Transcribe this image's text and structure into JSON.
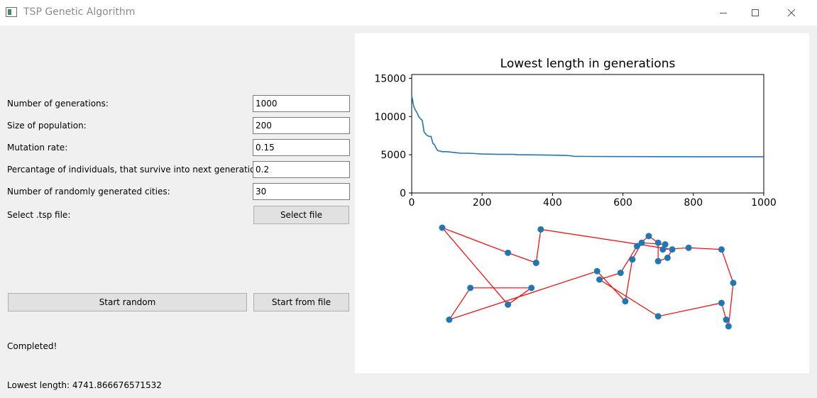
{
  "window": {
    "title": "TSP Genetic Algorithm",
    "minimize_icon": "minimize-icon",
    "maximize_icon": "maximize-icon",
    "close_icon": "close-icon"
  },
  "form": {
    "generations_label": "Number of generations:",
    "generations_value": "1000",
    "population_label": "Size of population:",
    "population_value": "200",
    "mutation_label": "Mutation rate:",
    "mutation_value": "0.15",
    "survive_label": "Percantage of individuals, that survive into next generation:",
    "survive_value": "0.2",
    "cities_label": "Number of randomly generated cities:",
    "cities_value": "30",
    "file_label": "Select .tsp file:",
    "select_file_button": "Select file"
  },
  "actions": {
    "start_random": "Start random",
    "start_from_file": "Start from file"
  },
  "status": {
    "message": "Completed!",
    "lowest_length": "Lowest length: 4741.866676571532"
  },
  "chart_data": [
    {
      "type": "line",
      "title": "Lowest length in generations",
      "xlabel": "",
      "ylabel": "",
      "xlim": [
        0,
        1000
      ],
      "ylim": [
        0,
        15500
      ],
      "x_ticks": [
        "0",
        "200",
        "400",
        "600",
        "800",
        "1000"
      ],
      "y_ticks": [
        "0",
        "5000",
        "10000",
        "15000"
      ],
      "color": "#1f77b4",
      "x": [
        0,
        3,
        6,
        10,
        15,
        20,
        25,
        30,
        35,
        40,
        45,
        50,
        55,
        60,
        65,
        70,
        75,
        80,
        85,
        100,
        120,
        140,
        160,
        180,
        200,
        250,
        290,
        300,
        350,
        400,
        440,
        450,
        460,
        500,
        600,
        700,
        800,
        900,
        1000
      ],
      "y": [
        12800,
        12000,
        11300,
        10900,
        10500,
        10000,
        9700,
        9500,
        8000,
        7700,
        7500,
        7400,
        7400,
        6500,
        6300,
        5800,
        5500,
        5500,
        5400,
        5400,
        5300,
        5200,
        5200,
        5150,
        5100,
        5050,
        5050,
        5000,
        4980,
        4950,
        4900,
        4870,
        4800,
        4780,
        4760,
        4750,
        4745,
        4742,
        4742
      ]
    },
    {
      "type": "scatter",
      "title": "",
      "point_color": "#1f77b4",
      "path_color": "#ff0000",
      "x": [
        46.5,
        47.5,
        75.5,
        74.5,
        72.5,
        72.5,
        70.5,
        68.0,
        64.5,
        60.0,
        72.5,
        86.0,
        87.0,
        87.5,
        88.5,
        86.0,
        79.0,
        73.5,
        74.0,
        69.0,
        67.0,
        65.5,
        59.5,
        28.0,
        32.5,
        45.5,
        40.5,
        26.5,
        40.5,
        46.5
      ],
      "y": [
        58.0,
        68.0,
        62.0,
        59.5,
        58.5,
        64.0,
        66.0,
        63.0,
        55.0,
        53.0,
        42.0,
        46.0,
        41.0,
        39.0,
        52.0,
        62.0,
        62.5,
        62.0,
        63.5,
        64.0,
        59.0,
        46.5,
        55.5,
        41.0,
        50.5,
        50.5,
        45.5,
        68.5,
        61.0,
        58.0
      ],
      "closed_path": true
    }
  ]
}
